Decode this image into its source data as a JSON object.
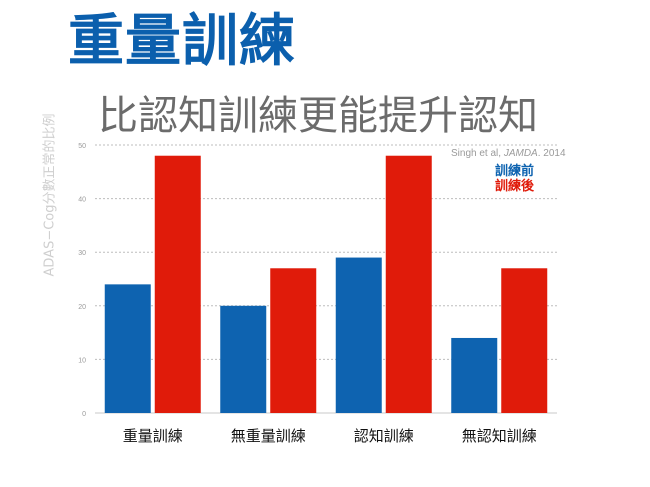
{
  "title": "重量訓練",
  "subtitle": "比認知訓練更能提升認知",
  "citation": {
    "prefix": "Singh et al, ",
    "journal": "JAMDA",
    "suffix": ". 2014"
  },
  "colors": {
    "before": "#0e63b0",
    "after": "#e01b0a",
    "title": "#0b5fad",
    "grid": "#bdbdbd",
    "axis": "#c8c8c8"
  },
  "chart_data": {
    "type": "bar",
    "title": "重量訓練",
    "subtitle": "比認知訓練更能提升認知",
    "ylabel": "ADAS−Cog分數正常的比例",
    "xlabel": "",
    "categories": [
      "重量訓練",
      "無重量訓練",
      "認知訓練",
      "無認知訓練"
    ],
    "series": [
      {
        "name": "訓練前",
        "values": [
          24,
          20,
          29,
          14
        ],
        "color": "#0e63b0"
      },
      {
        "name": "訓練後",
        "values": [
          48,
          27,
          48,
          27
        ],
        "color": "#e01b0a"
      }
    ],
    "ylim": [
      0,
      50
    ],
    "yticks": [
      0,
      10,
      20,
      30,
      40,
      50
    ],
    "grid": true,
    "legend": "top-right"
  }
}
